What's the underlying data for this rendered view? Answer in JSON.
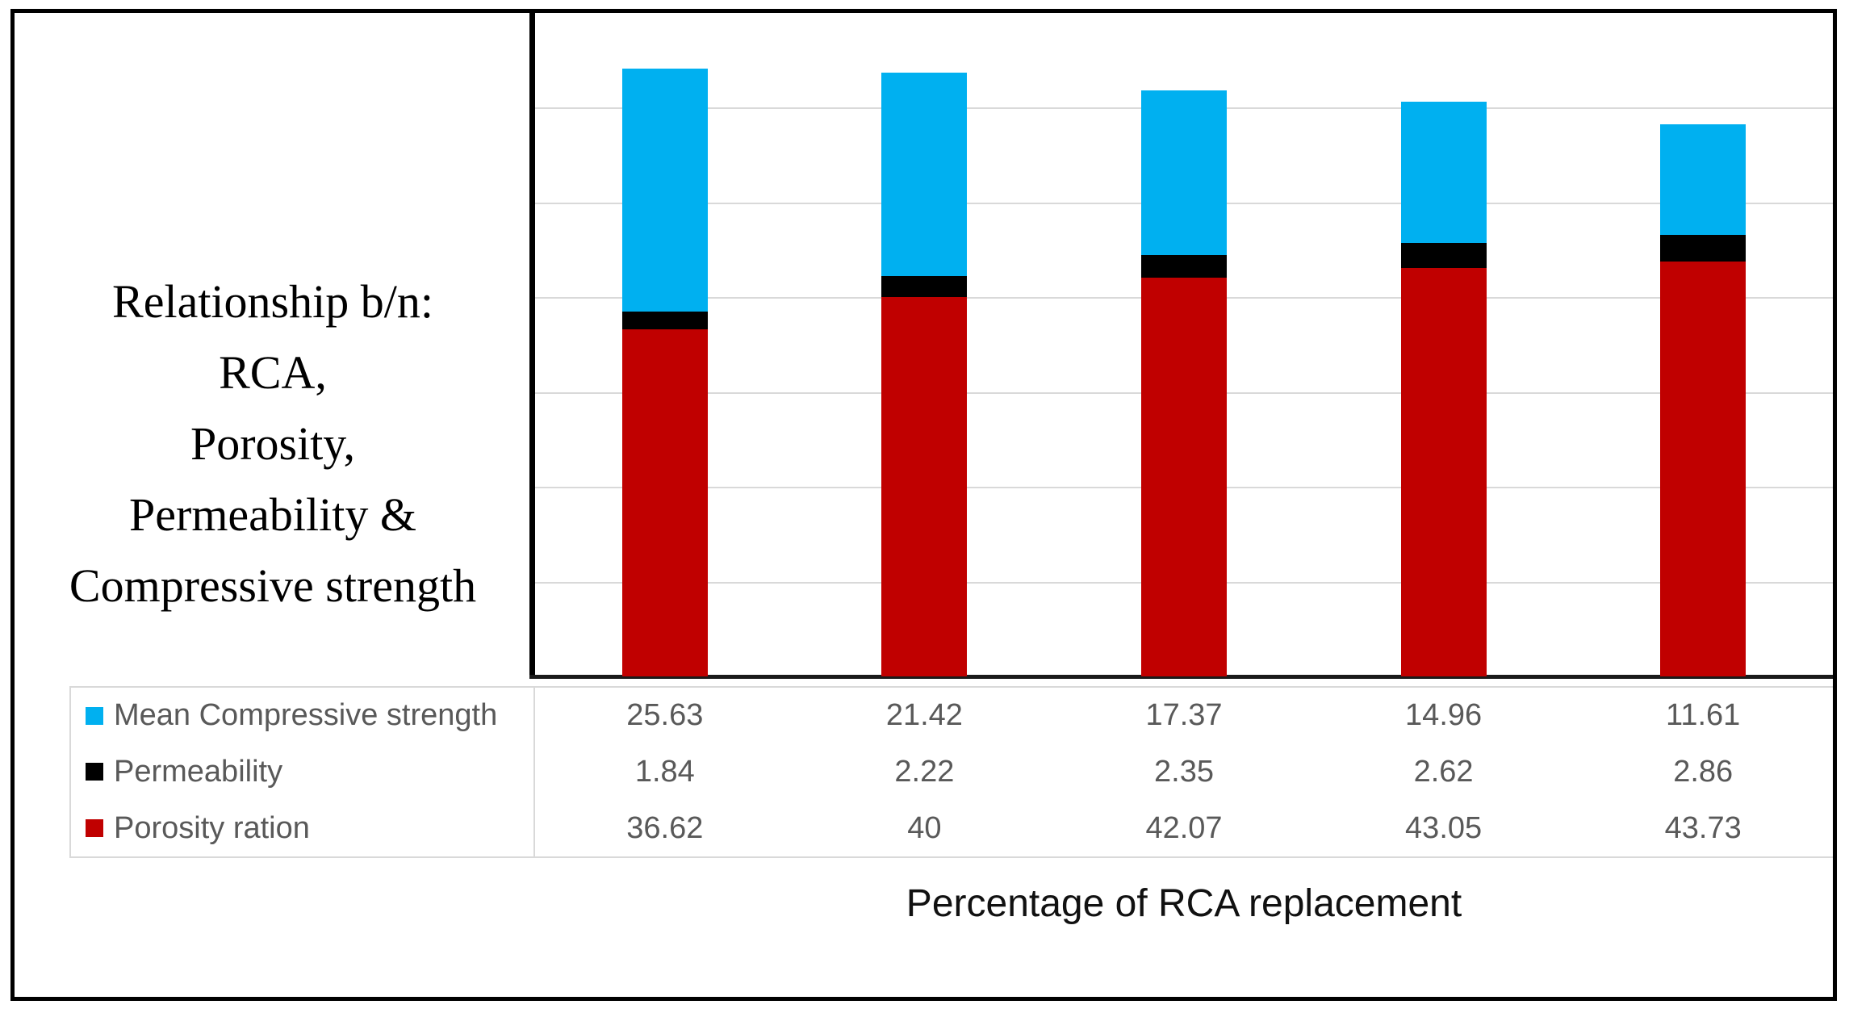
{
  "figure": {
    "title_lines": [
      "Relationship b/n:",
      "RCA,",
      "Porosity,",
      "Permeability &",
      "Compressive strength"
    ],
    "x_axis_label": "Percentage of RCA replacement"
  },
  "chart_data": {
    "type": "bar",
    "stacked": true,
    "title": "Relationship b/n: RCA, Porosity, Permeability & Compressive strength",
    "xlabel": "Percentage of RCA replacement",
    "ylabel": "",
    "ylim": [
      0,
      70
    ],
    "grid": "horizontal",
    "gridline_interval": 10,
    "gridline_color": "#D9D9D9",
    "legend_position": "bottom-left-data-table",
    "axis_color": "#000000",
    "table_text_color": "#595959",
    "num_categories": 5,
    "series": [
      {
        "name": "Mean Compressive strength",
        "color": "#00B0F0",
        "values": [
          25.63,
          21.42,
          17.37,
          14.96,
          11.61
        ]
      },
      {
        "name": "Permeability",
        "color": "#000000",
        "values": [
          1.84,
          2.22,
          2.35,
          2.62,
          2.86
        ]
      },
      {
        "name": "Porosity ration",
        "color": "#C00000",
        "values": [
          36.62,
          40,
          42.07,
          43.05,
          43.73
        ]
      }
    ]
  }
}
